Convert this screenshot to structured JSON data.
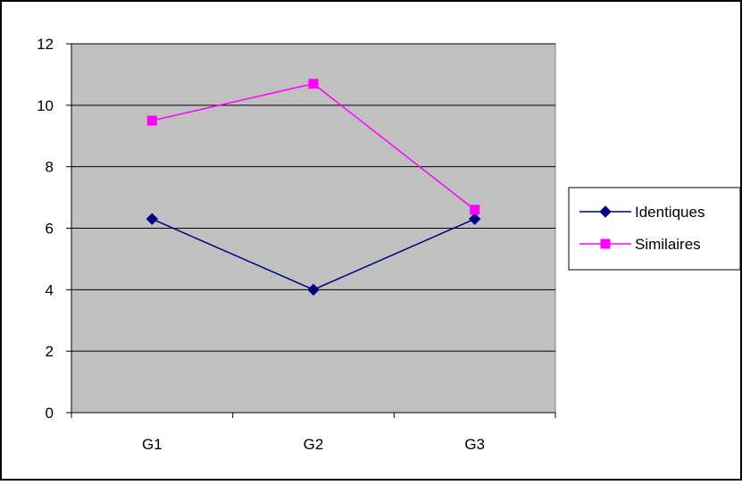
{
  "chart_data": {
    "type": "line",
    "categories": [
      "G1",
      "G2",
      "G3"
    ],
    "series": [
      {
        "name": "Identiques",
        "values": [
          6.3,
          4.0,
          6.3
        ],
        "color": "#000080",
        "marker": "diamond"
      },
      {
        "name": "Similaires",
        "values": [
          9.5,
          10.7,
          6.6
        ],
        "color": "#ff00ff",
        "marker": "square"
      }
    ],
    "title": "",
    "xlabel": "",
    "ylabel": "",
    "ylim": [
      0,
      12
    ],
    "yticks": [
      0,
      2,
      4,
      6,
      8,
      10,
      12
    ],
    "grid": true,
    "plot_background": "#c0c0c0",
    "legend_position": "right"
  }
}
